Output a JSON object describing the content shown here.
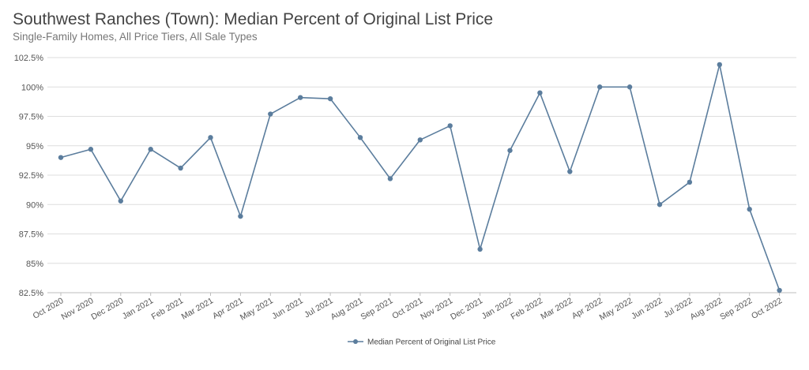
{
  "chart_data": {
    "type": "line",
    "title": "Southwest Ranches (Town): Median Percent of Original List Price",
    "subtitle": "Single-Family Homes, All Price Tiers, All Sale Types",
    "categories": [
      "Oct 2020",
      "Nov 2020",
      "Dec 2020",
      "Jan 2021",
      "Feb 2021",
      "Mar 2021",
      "Apr 2021",
      "May 2021",
      "Jun 2021",
      "Jul 2021",
      "Aug 2021",
      "Sep 2021",
      "Oct 2021",
      "Nov 2021",
      "Dec 2021",
      "Jan 2022",
      "Feb 2022",
      "Mar 2022",
      "Apr 2022",
      "May 2022",
      "Jun 2022",
      "Jul 2022",
      "Aug 2022",
      "Sep 2022",
      "Oct 2022"
    ],
    "series": [
      {
        "name": "Median Percent of Original List Price",
        "values": [
          94.0,
          94.7,
          90.3,
          94.7,
          93.1,
          95.7,
          89.0,
          97.7,
          99.1,
          99.0,
          95.7,
          92.2,
          95.5,
          96.7,
          86.2,
          94.6,
          99.5,
          92.8,
          100.0,
          100.0,
          90.0,
          91.9,
          101.9,
          89.6,
          82.7
        ]
      }
    ],
    "yticks": [
      "82.5%",
      "85%",
      "87.5%",
      "90%",
      "92.5%",
      "95%",
      "97.5%",
      "100%",
      "102.5%"
    ],
    "ylim": [
      82.5,
      102.5
    ],
    "xlabel": "",
    "ylabel": "",
    "grid": true,
    "legend": "bottom-center",
    "colors": {
      "line": "#5b7d9d",
      "grid": "#dedede",
      "axis": "#bdbdbd"
    }
  }
}
